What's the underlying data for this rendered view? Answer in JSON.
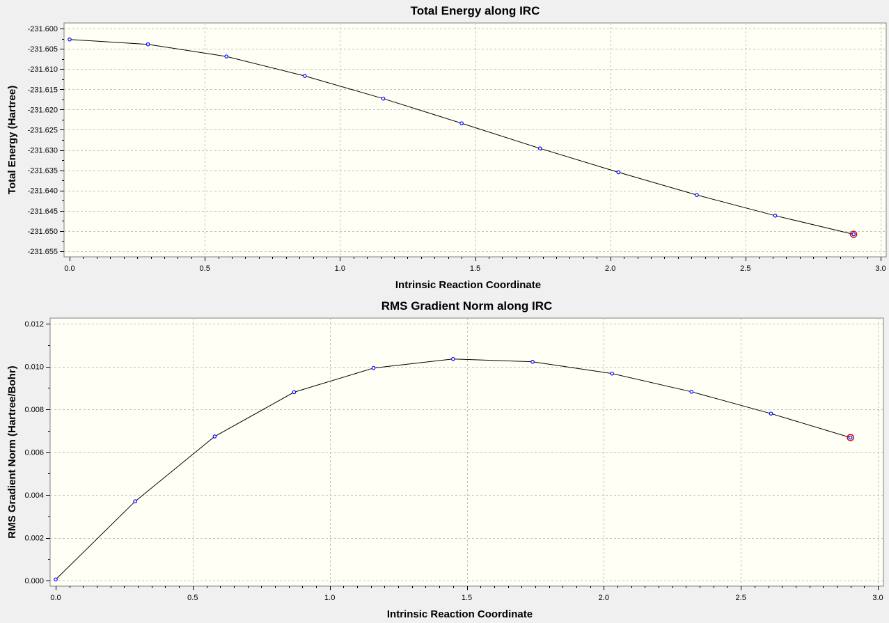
{
  "chart_data": [
    {
      "type": "line",
      "title": "Total Energy along IRC",
      "xlabel": "Intrinsic Reaction Coordinate",
      "ylabel": "Total Energy (Hartree)",
      "xlim": [
        0.0,
        3.0
      ],
      "ylim": [
        -231.655,
        -231.6
      ],
      "xticks": [
        0.0,
        0.5,
        1.0,
        1.5,
        2.0,
        2.5,
        3.0
      ],
      "xtick_labels": [
        "0.0",
        "0.5",
        "1.0",
        "1.5",
        "2.0",
        "2.5",
        "3.0"
      ],
      "yticks": [
        -231.6,
        -231.605,
        -231.61,
        -231.615,
        -231.62,
        -231.625,
        -231.63,
        -231.635,
        -231.64,
        -231.645,
        -231.65,
        -231.655
      ],
      "ytick_labels": [
        "-231.600",
        "-231.605",
        "-231.610",
        "-231.615",
        "-231.620",
        "-231.625",
        "-231.630",
        "-231.635",
        "-231.640",
        "-231.645",
        "-231.650",
        "-231.655"
      ],
      "grid": true,
      "x": [
        0.0,
        0.29,
        0.58,
        0.87,
        1.16,
        1.45,
        1.74,
        2.03,
        2.32,
        2.61,
        2.9
      ],
      "series": [
        {
          "values": [
            -231.6027,
            -231.6039,
            -231.6069,
            -231.6117,
            -231.6173,
            -231.6234,
            -231.6296,
            -231.6355,
            -231.6411,
            -231.6462,
            -231.6508
          ]
        }
      ],
      "highlight_index": 10,
      "colors": {
        "line": "#000000",
        "marker": "#0000ff",
        "highlight": "#cc0000",
        "plot_bg": "#fffff6",
        "grid": "#c0c0c0"
      }
    },
    {
      "type": "line",
      "title": "RMS Gradient Norm along IRC",
      "xlabel": "Intrinsic Reaction Coordinate",
      "ylabel": "RMS Gradient Norm (Hartree/Bohr)",
      "xlim": [
        0.0,
        3.0
      ],
      "ylim": [
        0.0,
        0.012
      ],
      "xticks": [
        0.0,
        0.5,
        1.0,
        1.5,
        2.0,
        2.5,
        3.0
      ],
      "xtick_labels": [
        "0.0",
        "0.5",
        "1.0",
        "1.5",
        "2.0",
        "2.5",
        "3.0"
      ],
      "yticks": [
        0.0,
        0.002,
        0.004,
        0.006,
        0.008,
        0.01,
        0.012
      ],
      "ytick_labels": [
        "0.000",
        "0.002",
        "0.004",
        "0.006",
        "0.008",
        "0.010",
        "0.012"
      ],
      "grid": true,
      "x": [
        0.0,
        0.29,
        0.58,
        0.87,
        1.16,
        1.45,
        1.74,
        2.03,
        2.32,
        2.61,
        2.9
      ],
      "series": [
        {
          "values": [
            5e-05,
            0.0037,
            0.00673,
            0.0088,
            0.00993,
            0.01035,
            0.01022,
            0.00967,
            0.00882,
            0.0078,
            0.00668
          ]
        }
      ],
      "highlight_index": 10,
      "colors": {
        "line": "#000000",
        "marker": "#0000ff",
        "highlight": "#cc0000",
        "plot_bg": "#fffff6",
        "grid": "#c0c0c0"
      }
    }
  ]
}
